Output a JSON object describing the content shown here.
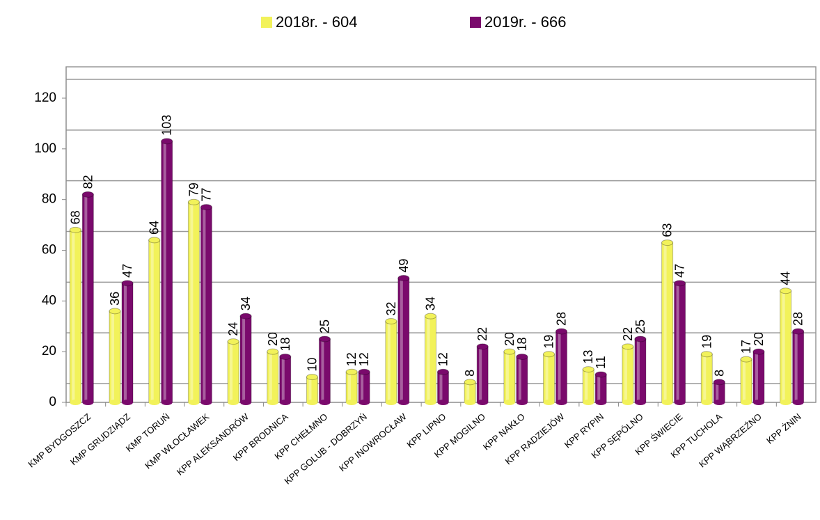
{
  "chart_data": {
    "type": "bar",
    "categories": [
      "KMP BYDGOSZCZ",
      "KMP GRUDZIĄDZ",
      "KMP TORUŃ",
      "KMP WŁOCŁAWEK",
      "KPP ALEKSANDRÓW",
      "KPP BRODNICA",
      "KPP CHEŁMNO",
      "KPP GOLUB - DOBRZYŃ",
      "KPP INOWROCŁAW",
      "KPP LIPNO",
      "KPP MOGILNO",
      "KPP NAKŁO",
      "KPP RADZIEJÓW",
      "KPP RYPIN",
      "KPP SĘPÓLNO",
      "KPP ŚWIECIE",
      "KPP TUCHOLA",
      "KPP WĄBRZEŹNO",
      "KPP ŻNIN"
    ],
    "series": [
      {
        "name": "2018r. - 604",
        "color": "#f2f25a",
        "label_color": "#3a6ea8",
        "values": [
          68,
          36,
          64,
          79,
          24,
          20,
          10,
          12,
          32,
          34,
          8,
          20,
          19,
          13,
          22,
          63,
          19,
          17,
          44
        ]
      },
      {
        "name": "2019r. - 666",
        "color": "#7a0a6c",
        "label_color": "#000000",
        "values": [
          82,
          47,
          103,
          77,
          34,
          18,
          25,
          12,
          49,
          12,
          22,
          18,
          28,
          11,
          25,
          47,
          8,
          20,
          28
        ]
      }
    ],
    "ylim": [
      0,
      120
    ],
    "yticks": [
      0,
      20,
      40,
      60,
      80,
      100,
      120
    ],
    "grid": true,
    "legend": "top"
  }
}
